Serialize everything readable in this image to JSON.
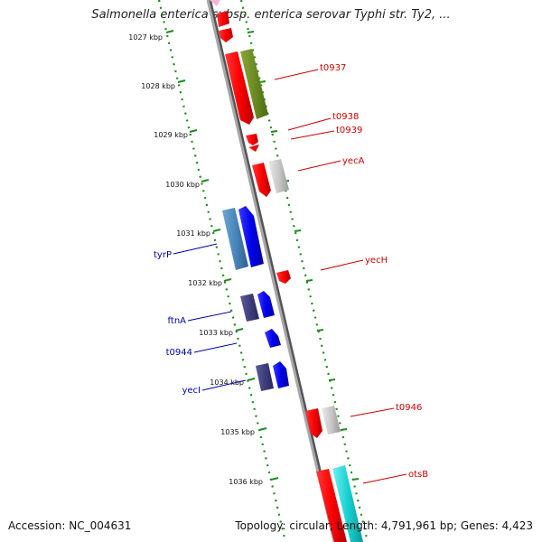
{
  "title": "Salmonella enterica subsp. enterica serovar Typhi str. Ty2, ...",
  "footer": {
    "accession": "Accession: NC_004631",
    "summary": "Topology: circular; Length: 4,791,961 bp; Genes: 4,423"
  },
  "colors": {
    "backbone": "#8a8a8a",
    "ruler": "#1f8a1f",
    "label_red": "#cc0000",
    "label_blue": "#0000aa"
  },
  "kbp_labels": [
    "1027 kbp",
    "1028 kbp",
    "1029 kbp",
    "1030 kbp",
    "1031 kbp",
    "1032 kbp",
    "1033 kbp",
    "1034 kbp",
    "1035 kbp",
    "1036 kbp"
  ],
  "gene_labels": [
    {
      "text": "t0937",
      "color": "red"
    },
    {
      "text": "t0938",
      "color": "red"
    },
    {
      "text": "t0939",
      "color": "red"
    },
    {
      "text": "yecA",
      "color": "red"
    },
    {
      "text": "yecH",
      "color": "red"
    },
    {
      "text": "t0946",
      "color": "red"
    },
    {
      "text": "otsB",
      "color": "red"
    },
    {
      "text": "tyrP",
      "color": "blue"
    },
    {
      "text": "ftnA",
      "color": "blue"
    },
    {
      "text": "t0944",
      "color": "blue"
    },
    {
      "text": "yecI",
      "color": "blue"
    }
  ]
}
